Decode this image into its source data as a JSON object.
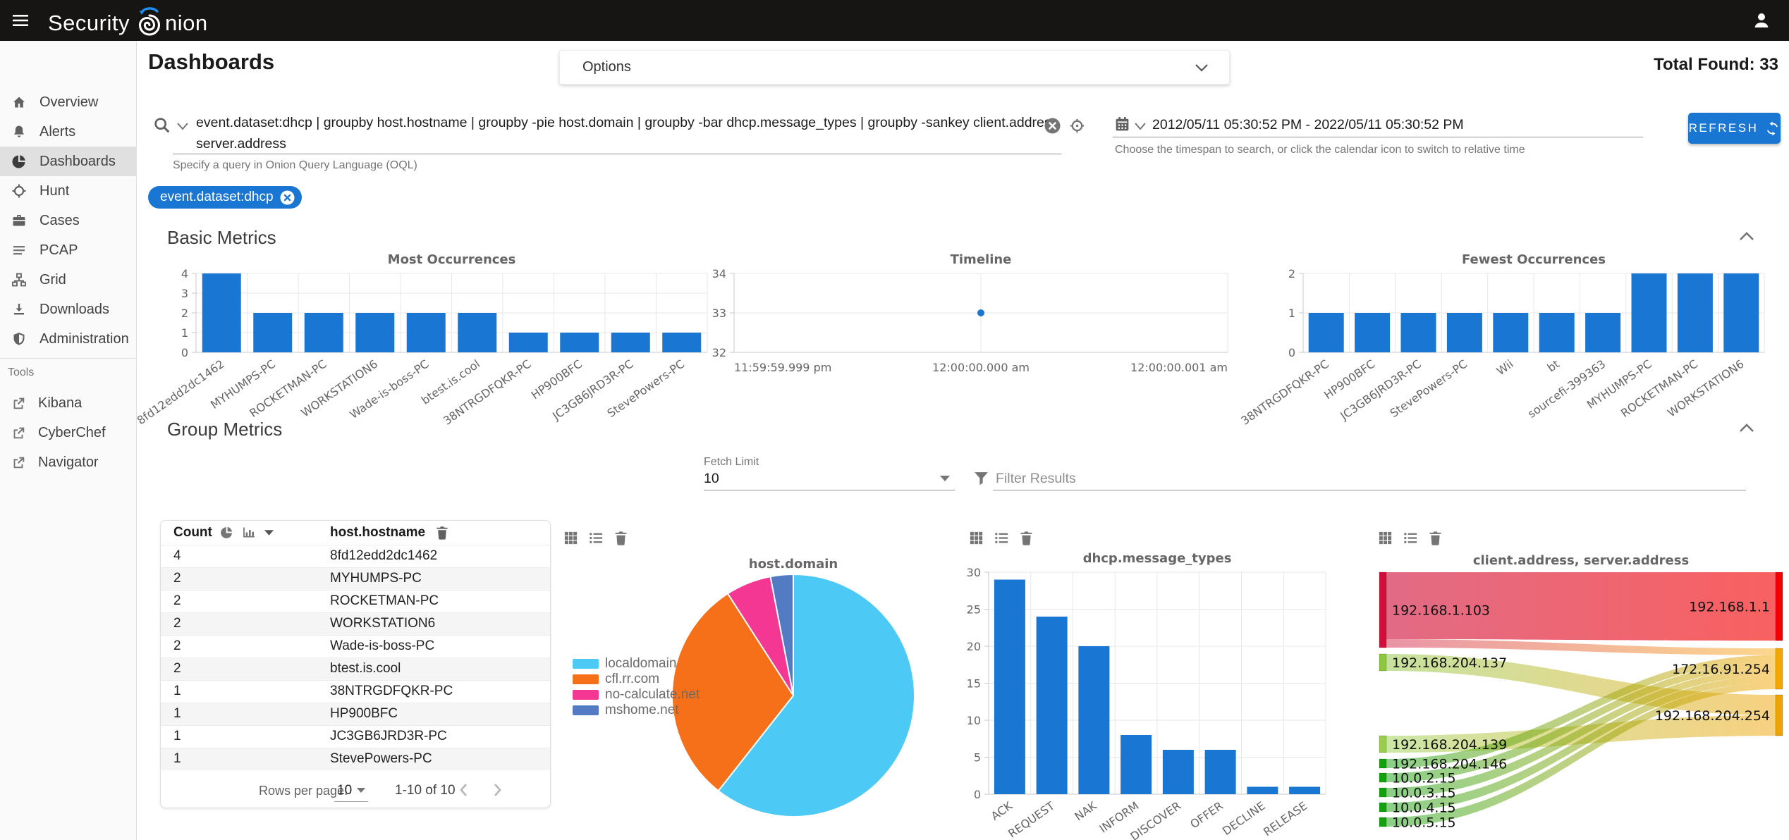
{
  "topbar": {
    "brand_first": "Security",
    "brand_rest": "nion"
  },
  "header": {
    "title": "Dashboards",
    "options_label": "Options",
    "total_found": "Total Found: 33"
  },
  "search": {
    "query": "event.dataset:dhcp | groupby host.hostname | groupby -pie host.domain | groupby -bar dhcp.message_types | groupby -sankey client.address server.address",
    "hint": "Specify a query in Onion Query Language (OQL)"
  },
  "timespan": {
    "range": "2012/05/11 05:30:52 PM - 2022/05/11 05:30:52 PM",
    "hint": "Choose the timespan to search, or click the calendar icon to switch to relative time",
    "refresh_label": "REFRESH"
  },
  "filter_chip": "event.dataset:dhcp",
  "sections": {
    "basic": "Basic Metrics",
    "group": "Group Metrics"
  },
  "controls": {
    "fetch_limit_label": "Fetch Limit",
    "fetch_limit_value": "10",
    "filter_placeholder": "Filter Results"
  },
  "sidebar": {
    "items": [
      {
        "label": "Overview"
      },
      {
        "label": "Alerts"
      },
      {
        "label": "Dashboards"
      },
      {
        "label": "Hunt"
      },
      {
        "label": "Cases"
      },
      {
        "label": "PCAP"
      },
      {
        "label": "Grid"
      },
      {
        "label": "Downloads"
      },
      {
        "label": "Administration"
      }
    ],
    "tools_label": "Tools",
    "tools": [
      {
        "label": "Kibana"
      },
      {
        "label": "CyberChef"
      },
      {
        "label": "Navigator"
      }
    ]
  },
  "group_table": {
    "count_header": "Count",
    "field_header": "host.hostname",
    "rows": [
      {
        "count": "4",
        "hostname": "8fd12edd2dc1462"
      },
      {
        "count": "2",
        "hostname": "MYHUMPS-PC"
      },
      {
        "count": "2",
        "hostname": "ROCKETMAN-PC"
      },
      {
        "count": "2",
        "hostname": "WORKSTATION6"
      },
      {
        "count": "2",
        "hostname": "Wade-is-boss-PC"
      },
      {
        "count": "2",
        "hostname": "btest.is.cool"
      },
      {
        "count": "1",
        "hostname": "38NTRGDFQKR-PC"
      },
      {
        "count": "1",
        "hostname": "HP900BFC"
      },
      {
        "count": "1",
        "hostname": "JC3GB6JRD3R-PC"
      },
      {
        "count": "1",
        "hostname": "StevePowers-PC"
      }
    ],
    "footer": {
      "rows_per_page_label": "Rows per page:",
      "rows_per_page": "10",
      "range": "1-10 of 10"
    }
  },
  "colors": {
    "accent": "#1976d2",
    "bar": "#1976d2",
    "topbar_bg": "#171513",
    "chip_bg": "#1976d2",
    "pie": [
      "#4dc9f6",
      "#f67019",
      "#f53794",
      "#537bc4"
    ],
    "sankey_nodes": {
      "192.168.1.103": "#d0103a",
      "192.168.204.137": "#8dc63f",
      "192.168.204.139": "#98ce4a",
      "192.168.204.146": "#13a10e",
      "10.0.2.15": "#13a10e",
      "10.0.3.15": "#13a10e",
      "10.0.4.15": "#13a10e",
      "10.0.5.15": "#13a10e",
      "192.168.1.1": "#f40000",
      "172.16.91.254": "#f7a600",
      "192.168.204.254": "#f0a202"
    }
  },
  "chart_data": [
    {
      "type": "bar",
      "title": "Most Occurrences",
      "categories": [
        "8fd12edd2dc1462",
        "MYHUMPS-PC",
        "ROCKETMAN-PC",
        "WORKSTATION6",
        "Wade-is-boss-PC",
        "btest.is.cool",
        "38NTRGDFQKR-PC",
        "HP900BFC",
        "JC3GB6JRD3R-PC",
        "StevePowers-PC"
      ],
      "values": [
        4,
        2,
        2,
        2,
        2,
        2,
        1,
        1,
        1,
        1
      ],
      "ylim": [
        0,
        4
      ],
      "yticks": [
        0,
        1,
        2,
        3,
        4
      ],
      "grid": true
    },
    {
      "type": "scatter",
      "title": "Timeline",
      "xticks": [
        "11:59:59.999 pm",
        "12:00:00.000 am",
        "12:00:00.001 am"
      ],
      "points": [
        {
          "x": "12:00:00.000 am",
          "y": 33
        }
      ],
      "ylim": [
        32,
        34
      ],
      "yticks": [
        32,
        33,
        34
      ],
      "grid": true
    },
    {
      "type": "bar",
      "title": "Fewest Occurrences",
      "categories": [
        "38NTRGDFQKR-PC",
        "HP900BFC",
        "JC3GB6JRD3R-PC",
        "StevePowers-PC",
        "Wii",
        "bt",
        "sourcefi-399363",
        "MYHUMPS-PC",
        "ROCKETMAN-PC",
        "WORKSTATION6"
      ],
      "values": [
        1,
        1,
        1,
        1,
        1,
        1,
        1,
        2,
        2,
        2
      ],
      "ylim": [
        0,
        2
      ],
      "yticks": [
        0,
        1,
        2
      ],
      "grid": true
    },
    {
      "type": "pie",
      "title": "host.domain",
      "labels": [
        "localdomain",
        "cfl.rr.com",
        "no-calculate.net",
        "mshome.net"
      ],
      "values": [
        20,
        10,
        2,
        1
      ],
      "legend_position": "left"
    },
    {
      "type": "bar",
      "title": "dhcp.message_types",
      "categories": [
        "ACK",
        "REQUEST",
        "NAK",
        "INFORM",
        "DISCOVER",
        "OFFER",
        "DECLINE",
        "RELEASE"
      ],
      "values": [
        29,
        24,
        20,
        8,
        6,
        6,
        1,
        1
      ],
      "ylim": [
        0,
        30
      ],
      "yticks": [
        0,
        5,
        10,
        15,
        20,
        25,
        30
      ],
      "grid": true
    },
    {
      "type": "sankey",
      "title": "client.address, server.address",
      "nodes": [
        "192.168.1.103",
        "192.168.204.137",
        "192.168.204.139",
        "192.168.204.146",
        "10.0.2.15",
        "10.0.3.15",
        "10.0.4.15",
        "10.0.5.15",
        "192.168.1.1",
        "172.16.91.254",
        "192.168.204.254"
      ],
      "links": [
        {
          "source": "192.168.1.103",
          "target": "192.168.1.1",
          "value": 8,
          "opacity": 0.62
        },
        {
          "source": "192.168.1.103",
          "target": "172.16.91.254",
          "value": 1,
          "opacity": 0.45
        },
        {
          "source": "192.168.204.137",
          "target": "192.168.204.254",
          "value": 2,
          "opacity": 0.5
        },
        {
          "source": "192.168.204.139",
          "target": "192.168.204.254",
          "value": 2,
          "opacity": 0.5
        },
        {
          "source": "192.168.204.146",
          "target": "172.16.91.254",
          "value": 1,
          "opacity": 0.5
        },
        {
          "source": "10.0.2.15",
          "target": "172.16.91.254",
          "value": 1,
          "opacity": 0.5
        },
        {
          "source": "10.0.3.15",
          "target": "172.16.91.254",
          "value": 1,
          "opacity": 0.5
        },
        {
          "source": "10.0.4.15",
          "target": "172.16.91.254",
          "value": 1,
          "opacity": 0.5
        },
        {
          "source": "10.0.5.15",
          "target": "172.16.91.254",
          "value": 1,
          "opacity": 0.5
        }
      ]
    }
  ]
}
